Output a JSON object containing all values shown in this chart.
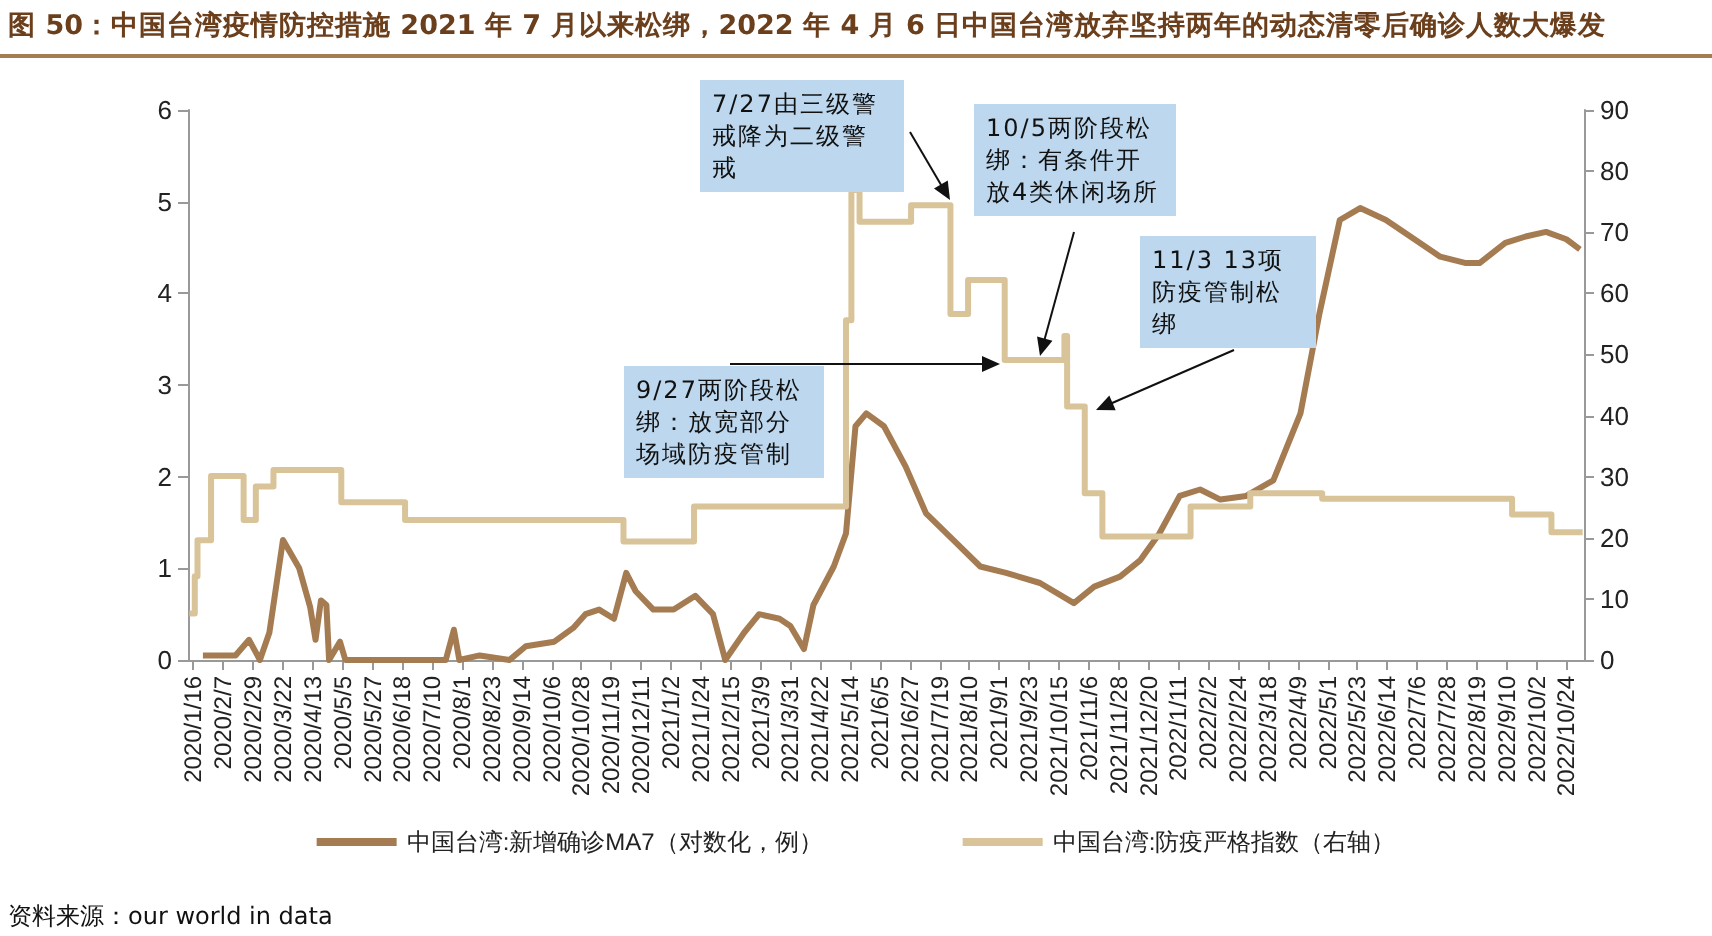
{
  "chart_data": {
    "type": "line",
    "title": "图 50：中国台湾疫情防控措施 2021 年 7 月以来松绑，2022 年 4 月 6 日中国台湾放弃坚持两年的动态清零后确诊人数大爆发",
    "series": [
      {
        "name": "中国台湾:新增确诊MA7（对数化，例）",
        "color": "#a57c52",
        "x": [
          "2020-01-23",
          "2020-02-16",
          "2020-02-26",
          "2020-03-05",
          "2020-03-12",
          "2020-03-22",
          "2020-04-03",
          "2020-04-11",
          "2020-04-15",
          "2020-04-19",
          "2020-04-23",
          "2020-04-25",
          "2020-05-03",
          "2020-05-07",
          "2020-07-20",
          "2020-07-26",
          "2020-07-30",
          "2020-08-14",
          "2020-09-05",
          "2020-09-17",
          "2020-10-08",
          "2020-10-22",
          "2020-10-31",
          "2020-11-10",
          "2020-11-21",
          "2020-11-30",
          "2020-12-07",
          "2020-12-20",
          "2021-01-04",
          "2021-01-20",
          "2021-02-02",
          "2021-02-11",
          "2021-02-25",
          "2021-03-08",
          "2021-03-23",
          "2021-03-31",
          "2021-04-10",
          "2021-04-17",
          "2021-05-02",
          "2021-05-11",
          "2021-05-18",
          "2021-05-26",
          "2021-06-08",
          "2021-06-24",
          "2021-07-09",
          "2021-07-29",
          "2021-08-18",
          "2021-09-06",
          "2021-10-01",
          "2021-10-26",
          "2021-11-10",
          "2021-11-29",
          "2021-12-14",
          "2021-12-28",
          "2022-01-12",
          "2022-01-27",
          "2022-02-11",
          "2022-03-02",
          "2022-03-22",
          "2022-04-11",
          "2022-04-25",
          "2022-05-10",
          "2022-05-25",
          "2022-06-13",
          "2022-07-04",
          "2022-07-23",
          "2022-08-11",
          "2022-08-21",
          "2022-09-09",
          "2022-09-24",
          "2022-10-09",
          "2022-10-24",
          "2022-11-03"
        ],
        "values": [
          0.05,
          0.05,
          0.22,
          0,
          0.3,
          1.31,
          1.0,
          0.58,
          0.22,
          0.65,
          0.6,
          0,
          0.2,
          0,
          0,
          0.33,
          0,
          0.05,
          0,
          0.15,
          0.2,
          0.35,
          0.5,
          0.55,
          0.45,
          0.95,
          0.75,
          0.55,
          0.55,
          0.7,
          0.5,
          0,
          0.3,
          0.5,
          0.45,
          0.37,
          0.12,
          0.6,
          1.02,
          1.38,
          2.55,
          2.69,
          2.55,
          2.11,
          1.6,
          1.31,
          1.02,
          0.95,
          0.84,
          0.62,
          0.8,
          0.91,
          1.09,
          1.38,
          1.79,
          1.86,
          1.75,
          1.79,
          1.96,
          2.69,
          3.78,
          4.8,
          4.93,
          4.8,
          4.59,
          4.4,
          4.33,
          4.33,
          4.55,
          4.62,
          4.67,
          4.59,
          4.48
        ]
      },
      {
        "name": "中国台湾:防疫严格指数（右轴）",
        "color": "#d9c49a",
        "type": "step",
        "axis": "y2",
        "x": [
          "2020-01-13",
          "2020-01-17",
          "2020-01-19",
          "2020-01-29",
          "2020-02-22",
          "2020-03-02",
          "2020-03-15",
          "2020-05-04",
          "2020-06-20",
          "2020-11-28",
          "2021-01-19",
          "2021-05-11",
          "2021-05-15",
          "2021-05-21",
          "2021-06-28",
          "2021-07-27",
          "2021-08-09",
          "2021-09-05",
          "2021-10-19",
          "2021-10-21",
          "2021-11-03",
          "2021-11-16",
          "2022-01-20",
          "2022-03-05",
          "2022-04-27",
          "2022-09-14",
          "2022-10-13",
          "2022-11-05"
        ],
        "values": [
          7.6,
          13.7,
          19.6,
          30.1,
          22.9,
          28.4,
          31.1,
          25.8,
          22.9,
          19.4,
          25.1,
          55.6,
          76.9,
          71.7,
          74.4,
          56.6,
          62.2,
          49.1,
          53,
          41.5,
          27.3,
          20.2,
          25.1,
          27.3,
          26.4,
          23.8,
          20.9,
          20.9
        ]
      }
    ],
    "xlim": [
      "2020-01-12",
      "2022-11-06"
    ],
    "xticks": [
      {
        "value": "2020-01-16",
        "label": "2020/1/16"
      },
      {
        "value": "2020-02-07",
        "label": "2020/2/7"
      },
      {
        "value": "2020-02-29",
        "label": "2020/2/29"
      },
      {
        "value": "2020-03-22",
        "label": "2020/3/22"
      },
      {
        "value": "2020-04-13",
        "label": "2020/4/13"
      },
      {
        "value": "2020-05-05",
        "label": "2020/5/5"
      },
      {
        "value": "2020-05-27",
        "label": "2020/5/27"
      },
      {
        "value": "2020-06-18",
        "label": "2020/6/18"
      },
      {
        "value": "2020-07-10",
        "label": "2020/7/10"
      },
      {
        "value": "2020-08-01",
        "label": "2020/8/1"
      },
      {
        "value": "2020-08-23",
        "label": "2020/8/23"
      },
      {
        "value": "2020-09-14",
        "label": "2020/9/14"
      },
      {
        "value": "2020-10-06",
        "label": "2020/10/6"
      },
      {
        "value": "2020-10-28",
        "label": "2020/10/28"
      },
      {
        "value": "2020-11-19",
        "label": "2020/11/19"
      },
      {
        "value": "2020-12-11",
        "label": "2020/12/11"
      },
      {
        "value": "2021-01-02",
        "label": "2021/1/2"
      },
      {
        "value": "2021-01-24",
        "label": "2021/1/24"
      },
      {
        "value": "2021-02-15",
        "label": "2021/2/15"
      },
      {
        "value": "2021-03-09",
        "label": "2021/3/9"
      },
      {
        "value": "2021-03-31",
        "label": "2021/3/31"
      },
      {
        "value": "2021-04-22",
        "label": "2021/4/22"
      },
      {
        "value": "2021-05-14",
        "label": "2021/5/14"
      },
      {
        "value": "2021-06-05",
        "label": "2021/6/5"
      },
      {
        "value": "2021-06-27",
        "label": "2021/6/27"
      },
      {
        "value": "2021-07-19",
        "label": "2021/7/19"
      },
      {
        "value": "2021-08-10",
        "label": "2021/8/10"
      },
      {
        "value": "2021-09-01",
        "label": "2021/9/1"
      },
      {
        "value": "2021-09-23",
        "label": "2021/9/23"
      },
      {
        "value": "2021-10-15",
        "label": "2021/10/15"
      },
      {
        "value": "2021-11-06",
        "label": "2021/11/6"
      },
      {
        "value": "2021-11-28",
        "label": "2021/11/28"
      },
      {
        "value": "2021-12-20",
        "label": "2021/12/20"
      },
      {
        "value": "2022-01-11",
        "label": "2022/1/11"
      },
      {
        "value": "2022-02-02",
        "label": "2022/2/2"
      },
      {
        "value": "2022-02-24",
        "label": "2022/2/24"
      },
      {
        "value": "2022-03-18",
        "label": "2022/3/18"
      },
      {
        "value": "2022-04-09",
        "label": "2022/4/9"
      },
      {
        "value": "2022-05-01",
        "label": "2022/5/1"
      },
      {
        "value": "2022-05-23",
        "label": "2022/5/23"
      },
      {
        "value": "2022-06-14",
        "label": "2022/6/14"
      },
      {
        "value": "2022-07-06",
        "label": "2022/7/6"
      },
      {
        "value": "2022-07-28",
        "label": "2022/7/28"
      },
      {
        "value": "2022-08-19",
        "label": "2022/8/19"
      },
      {
        "value": "2022-09-10",
        "label": "2022/9/10"
      },
      {
        "value": "2022-10-02",
        "label": "2022/10/2"
      },
      {
        "value": "2022-10-24",
        "label": "2022/10/24"
      }
    ],
    "ylim": [
      0,
      6
    ],
    "yticks": [
      0,
      1,
      2,
      3,
      4,
      5,
      6
    ],
    "y2lim": [
      0,
      90
    ],
    "y2ticks": [
      0,
      10,
      20,
      30,
      40,
      50,
      60,
      70,
      80,
      90
    ],
    "annotations": [
      "7/27由三级警戒降为二级警戒",
      "10/5两阶段松绑：有条件开放4类休闲场所",
      "11/3 13项防疫管制松绑",
      "9/27两阶段松绑：放宽部分场域防疫管制",
      "资料来源：our world in data"
    ],
    "legend": "bottom",
    "grid": false,
    "marker": "none",
    "line_style": "solid"
  }
}
